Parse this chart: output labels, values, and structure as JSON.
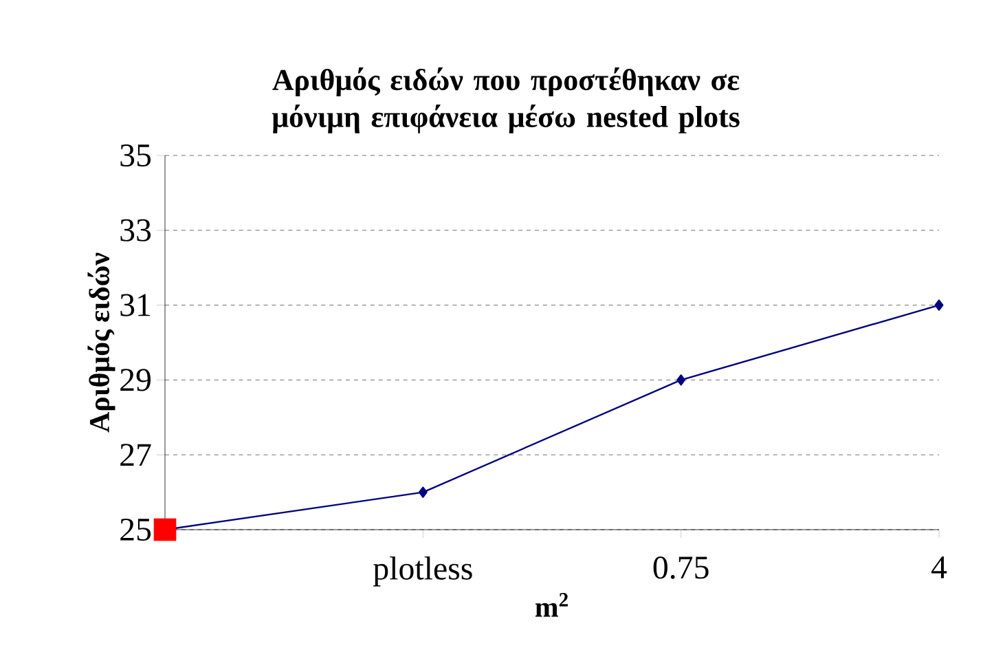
{
  "chart_data": {
    "type": "line",
    "title": "Αριθμός ειδών που προστέθηκαν σε μόνιμη επιφάνεια μέσω nested plots",
    "xlabel": "m$^{2}$",
    "ylabel": "Αριθμός ειδών",
    "categories": [
      null,
      "plotless",
      "0.75",
      "4"
    ],
    "series": [
      {
        "color": "#000080",
        "values": [
          25,
          26,
          29,
          31
        ],
        "marker": "diamond"
      },
      {
        "type": "scatter",
        "color": "#ff0000",
        "values": [
          25,
          null,
          null,
          null
        ],
        "marker": "square"
      }
    ],
    "ylim": [
      25,
      35
    ],
    "yticks": [
      25,
      27,
      29,
      31,
      33,
      35
    ],
    "grid": "y",
    "line_style": "solid"
  }
}
